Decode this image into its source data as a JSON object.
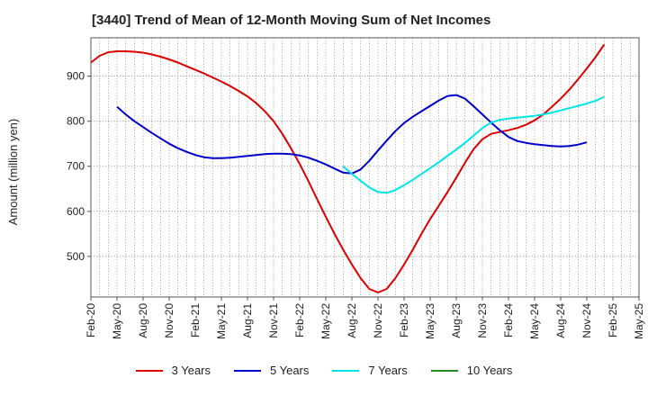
{
  "title": "[3440]  Trend of Mean of 12-Month Moving Sum of Net Incomes",
  "chart_data": {
    "type": "line",
    "title": "[3440]  Trend of Mean of 12-Month Moving Sum of Net Incomes",
    "xlabel": "",
    "ylabel": "Amount (million yen)",
    "ylim": [
      410,
      985
    ],
    "yticks": [
      500,
      600,
      700,
      800,
      900
    ],
    "xlim": [
      "Feb-20",
      "May-25"
    ],
    "x_tick_labels": [
      "Feb-20",
      "May-20",
      "Aug-20",
      "Nov-20",
      "Feb-21",
      "May-21",
      "Aug-21",
      "Nov-21",
      "Feb-22",
      "May-22",
      "Aug-22",
      "Nov-22",
      "Feb-23",
      "May-23",
      "Aug-23",
      "Nov-23",
      "Feb-24",
      "May-24",
      "Aug-24",
      "Nov-24",
      "Feb-25",
      "May-25"
    ],
    "grid": true,
    "legend_position": "bottom",
    "series": [
      {
        "name": "3 Years",
        "color": "#dd0000",
        "points": [
          [
            "Feb-20",
            930
          ],
          [
            "Mar-20",
            945
          ],
          [
            "Apr-20",
            953
          ],
          [
            "May-20",
            955
          ],
          [
            "Jun-20",
            955
          ],
          [
            "Jul-20",
            954
          ],
          [
            "Aug-20",
            952
          ],
          [
            "Sep-20",
            948
          ],
          [
            "Oct-20",
            943
          ],
          [
            "Nov-20",
            937
          ],
          [
            "Dec-20",
            930
          ],
          [
            "Jan-21",
            922
          ],
          [
            "Feb-21",
            914
          ],
          [
            "Mar-21",
            906
          ],
          [
            "Apr-21",
            897
          ],
          [
            "May-21",
            888
          ],
          [
            "Jun-21",
            878
          ],
          [
            "Jul-21",
            867
          ],
          [
            "Aug-21",
            855
          ],
          [
            "Sep-21",
            840
          ],
          [
            "Oct-21",
            822
          ],
          [
            "Nov-21",
            800
          ],
          [
            "Dec-21",
            772
          ],
          [
            "Jan-22",
            740
          ],
          [
            "Feb-22",
            705
          ],
          [
            "Mar-22",
            667
          ],
          [
            "Apr-22",
            627
          ],
          [
            "May-22",
            588
          ],
          [
            "Jun-22",
            550
          ],
          [
            "Jul-22",
            515
          ],
          [
            "Aug-22",
            482
          ],
          [
            "Sep-22",
            452
          ],
          [
            "Oct-22",
            428
          ],
          [
            "Nov-22",
            420
          ],
          [
            "Dec-22",
            428
          ],
          [
            "Jan-23",
            452
          ],
          [
            "Feb-23",
            482
          ],
          [
            "Mar-23",
            515
          ],
          [
            "Apr-23",
            550
          ],
          [
            "May-23",
            583
          ],
          [
            "Jun-23",
            613
          ],
          [
            "Jul-23",
            643
          ],
          [
            "Aug-23",
            675
          ],
          [
            "Sep-23",
            708
          ],
          [
            "Oct-23",
            738
          ],
          [
            "Nov-23",
            760
          ],
          [
            "Dec-23",
            772
          ],
          [
            "Jan-24",
            776
          ],
          [
            "Feb-24",
            780
          ],
          [
            "Mar-24",
            785
          ],
          [
            "Apr-24",
            792
          ],
          [
            "May-24",
            802
          ],
          [
            "Jun-24",
            815
          ],
          [
            "Jul-24",
            832
          ],
          [
            "Aug-24",
            850
          ],
          [
            "Sep-24",
            870
          ],
          [
            "Oct-24",
            893
          ],
          [
            "Nov-24",
            917
          ],
          [
            "Dec-24",
            942
          ],
          [
            "Jan-25",
            970
          ]
        ]
      },
      {
        "name": "5 Years",
        "color": "#0000cc",
        "points": [
          [
            "May-20",
            832
          ],
          [
            "Jun-20",
            815
          ],
          [
            "Jul-20",
            800
          ],
          [
            "Aug-20",
            787
          ],
          [
            "Sep-20",
            774
          ],
          [
            "Oct-20",
            762
          ],
          [
            "Nov-20",
            750
          ],
          [
            "Dec-20",
            740
          ],
          [
            "Jan-21",
            732
          ],
          [
            "Feb-21",
            725
          ],
          [
            "Mar-21",
            720
          ],
          [
            "Apr-21",
            718
          ],
          [
            "May-21",
            718
          ],
          [
            "Jun-21",
            719
          ],
          [
            "Jul-21",
            721
          ],
          [
            "Aug-21",
            723
          ],
          [
            "Sep-21",
            725
          ],
          [
            "Oct-21",
            727
          ],
          [
            "Nov-21",
            728
          ],
          [
            "Dec-21",
            728
          ],
          [
            "Jan-22",
            727
          ],
          [
            "Feb-22",
            724
          ],
          [
            "Mar-22",
            719
          ],
          [
            "Apr-22",
            712
          ],
          [
            "May-22",
            704
          ],
          [
            "Jun-22",
            695
          ],
          [
            "Jul-22",
            686
          ],
          [
            "Aug-22",
            684
          ],
          [
            "Sep-22",
            693
          ],
          [
            "Oct-22",
            712
          ],
          [
            "Nov-22",
            735
          ],
          [
            "Dec-22",
            757
          ],
          [
            "Jan-23",
            778
          ],
          [
            "Feb-23",
            796
          ],
          [
            "Mar-23",
            810
          ],
          [
            "Apr-23",
            822
          ],
          [
            "May-23",
            834
          ],
          [
            "Jun-23",
            846
          ],
          [
            "Jul-23",
            856
          ],
          [
            "Aug-23",
            858
          ],
          [
            "Sep-23",
            850
          ],
          [
            "Oct-23",
            833
          ],
          [
            "Nov-23",
            815
          ],
          [
            "Dec-23",
            797
          ],
          [
            "Jan-24",
            780
          ],
          [
            "Feb-24",
            765
          ],
          [
            "Mar-24",
            756
          ],
          [
            "Apr-24",
            752
          ],
          [
            "May-24",
            749
          ],
          [
            "Jun-24",
            747
          ],
          [
            "Jul-24",
            745
          ],
          [
            "Aug-24",
            744
          ],
          [
            "Sep-24",
            745
          ],
          [
            "Oct-24",
            748
          ],
          [
            "Nov-24",
            753
          ]
        ]
      },
      {
        "name": "7 Years",
        "color": "#00e5e5",
        "points": [
          [
            "Jul-22",
            700
          ],
          [
            "Aug-22",
            683
          ],
          [
            "Sep-22",
            668
          ],
          [
            "Oct-22",
            653
          ],
          [
            "Nov-22",
            643
          ],
          [
            "Dec-22",
            641
          ],
          [
            "Jan-23",
            647
          ],
          [
            "Feb-23",
            658
          ],
          [
            "Mar-23",
            670
          ],
          [
            "Apr-23",
            683
          ],
          [
            "May-23",
            696
          ],
          [
            "Jun-23",
            709
          ],
          [
            "Jul-23",
            723
          ],
          [
            "Aug-23",
            737
          ],
          [
            "Sep-23",
            752
          ],
          [
            "Oct-23",
            768
          ],
          [
            "Nov-23",
            785
          ],
          [
            "Dec-23",
            797
          ],
          [
            "Jan-24",
            803
          ],
          [
            "Feb-24",
            806
          ],
          [
            "Mar-24",
            808
          ],
          [
            "Apr-24",
            810
          ],
          [
            "May-24",
            812
          ],
          [
            "Jun-24",
            815
          ],
          [
            "Jul-24",
            819
          ],
          [
            "Aug-24",
            824
          ],
          [
            "Sep-24",
            829
          ],
          [
            "Oct-24",
            834
          ],
          [
            "Nov-24",
            839
          ],
          [
            "Dec-24",
            845
          ],
          [
            "Jan-25",
            854
          ]
        ]
      },
      {
        "name": "10 Years",
        "color": "#228b22",
        "points": []
      }
    ]
  }
}
